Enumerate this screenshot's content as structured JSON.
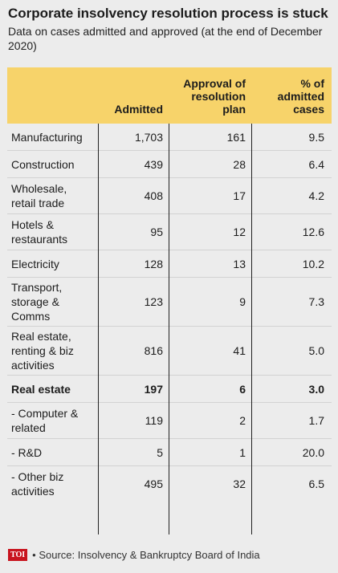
{
  "header": {
    "title": "Corporate insolvency resolution process is stuck",
    "subtitle": "Data on cases admitted and approved (at the end of December 2020)"
  },
  "colors": {
    "header_bg": "#f7d36a",
    "background": "#ececec",
    "logo_bg": "#c8141e"
  },
  "chart_data": {
    "type": "table",
    "title": "Corporate insolvency resolution process is stuck",
    "subtitle": "Data on cases admitted and approved (at the end of December 2020)",
    "columns": [
      "",
      "Admitted",
      "Approval of resolution plan",
      "% of admitted cases"
    ],
    "rows": [
      {
        "name": "Manufacturing",
        "admitted": "1,703",
        "approval": "161",
        "pct": "9.5",
        "bold": false,
        "lines": 1
      },
      {
        "name": "Construction",
        "admitted": "439",
        "approval": "28",
        "pct": "6.4",
        "bold": false,
        "lines": 1
      },
      {
        "name": "Wholesale, retail trade",
        "admitted": "408",
        "approval": "17",
        "pct": "4.2",
        "bold": false,
        "lines": 2
      },
      {
        "name": "Hotels & restaurants",
        "admitted": "95",
        "approval": "12",
        "pct": "12.6",
        "bold": false,
        "lines": 2
      },
      {
        "name": "Electricity",
        "admitted": "128",
        "approval": "13",
        "pct": "10.2",
        "bold": false,
        "lines": 1
      },
      {
        "name": "Transport, storage & Comms",
        "admitted": "123",
        "approval": "9",
        "pct": "7.3",
        "bold": false,
        "lines": 3
      },
      {
        "name": "Real estate, renting & biz activities",
        "admitted": "816",
        "approval": "41",
        "pct": "5.0",
        "bold": false,
        "lines": 3
      },
      {
        "name": "Real estate",
        "admitted": "197",
        "approval": "6",
        "pct": "3.0",
        "bold": true,
        "lines": 1
      },
      {
        "name": "- Computer & related",
        "admitted": "119",
        "approval": "2",
        "pct": "1.7",
        "bold": false,
        "lines": 2
      },
      {
        "name": "- R&D",
        "admitted": "5",
        "approval": "1",
        "pct": "20.0",
        "bold": false,
        "lines": 1
      },
      {
        "name": "- Other biz activities",
        "admitted": "495",
        "approval": "32",
        "pct": "6.5",
        "bold": false,
        "lines": 2
      }
    ]
  },
  "table": {
    "col_admitted": "Admitted",
    "col_approval": [
      "Approval of",
      "resolution",
      "plan"
    ],
    "col_pct": [
      "% of",
      "admitted",
      "cases"
    ]
  },
  "footer": {
    "logo": "TOI",
    "source": "• Source: Insolvency & Bankruptcy Board of India"
  }
}
